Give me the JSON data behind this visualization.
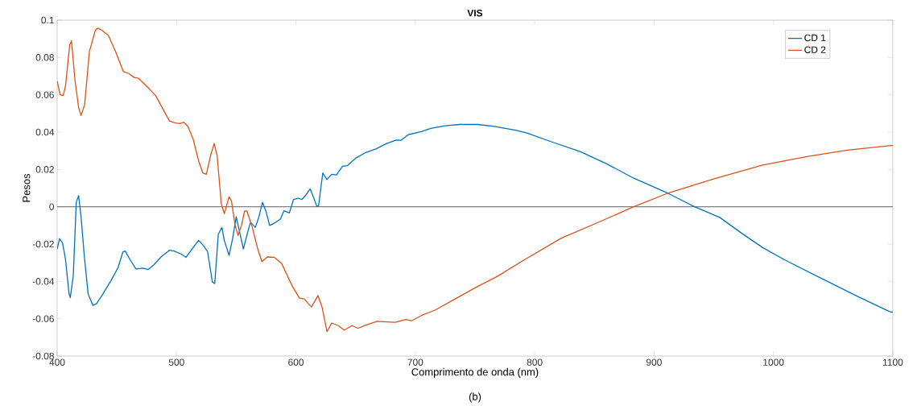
{
  "chart_data": {
    "type": "line",
    "title": "VIS",
    "xlabel": "Comprimento de onda (nm)",
    "ylabel": "Pesos",
    "annotations": [
      "(b)"
    ],
    "xlim": [
      400,
      1100
    ],
    "ylim": [
      -0.08,
      0.1
    ],
    "xticks": [
      400,
      500,
      600,
      700,
      800,
      900,
      1000,
      1100
    ],
    "yticks": [
      -0.08,
      -0.06,
      -0.04,
      -0.02,
      0,
      0.02,
      0.04,
      0.06,
      0.08,
      0.1
    ],
    "grid": false,
    "legend": "top right",
    "marker": "none",
    "line_style": "solid",
    "ref_lines": [
      {
        "axis": "y",
        "value": 0,
        "color": "#808080"
      }
    ],
    "series": [
      {
        "name": "CD 1",
        "color": "#0072bd",
        "x": [
          400,
          402,
          404.5,
          407,
          410,
          411,
          413.5,
          416,
          418,
          420,
          423,
          426,
          430,
          433,
          437.5,
          445,
          451,
          455,
          457,
          461,
          466,
          472,
          476,
          481,
          487,
          494,
          498,
          504,
          508,
          513,
          518.5,
          522,
          526,
          530,
          532,
          535,
          538,
          540,
          544,
          547,
          550,
          553,
          556,
          560,
          562,
          566,
          569,
          572,
          575,
          578,
          582.5,
          587,
          590,
          594.5,
          598,
          602,
          605,
          608,
          612,
          615,
          617.5,
          619,
          622.5,
          626,
          630,
          634,
          639,
          643,
          650,
          658,
          667,
          676,
          684,
          688,
          694,
          705,
          713,
          725,
          737,
          752,
          766,
          784,
          793,
          815,
          838,
          860,
          883,
          912,
          934,
          955,
          973,
          991,
          1009,
          1040,
          1069,
          1097,
          1100
        ],
        "values": [
          -0.0226,
          -0.0171,
          -0.0194,
          -0.0283,
          -0.0469,
          -0.0487,
          -0.0369,
          0.0024,
          0.006,
          -0.0054,
          -0.0283,
          -0.0469,
          -0.0529,
          -0.0519,
          -0.0476,
          -0.0397,
          -0.0326,
          -0.0243,
          -0.0237,
          -0.0283,
          -0.0333,
          -0.0329,
          -0.0337,
          -0.0311,
          -0.0269,
          -0.0233,
          -0.0237,
          -0.0254,
          -0.0271,
          -0.0226,
          -0.018,
          -0.0204,
          -0.024,
          -0.0404,
          -0.0411,
          -0.0147,
          -0.0111,
          -0.018,
          -0.0261,
          -0.0169,
          -0.0054,
          -0.014,
          -0.0226,
          -0.0126,
          -0.0083,
          -0.0111,
          -0.0054,
          0.0024,
          -0.0026,
          -0.01,
          -0.0086,
          -0.0066,
          -0.0021,
          -0.0033,
          0.0039,
          0.0046,
          0.0039,
          0.006,
          0.0096,
          0.0046,
          0.0003,
          0.0006,
          0.0181,
          0.0146,
          0.0174,
          0.0171,
          0.0217,
          0.022,
          0.026,
          0.0289,
          0.031,
          0.0339,
          0.0357,
          0.0356,
          0.0386,
          0.0403,
          0.042,
          0.0434,
          0.0441,
          0.0441,
          0.0431,
          0.041,
          0.0396,
          0.0346,
          0.0296,
          0.0231,
          0.0153,
          0.0071,
          0,
          -0.0057,
          -0.014,
          -0.0219,
          -0.0283,
          -0.0383,
          -0.0476,
          -0.0561,
          -0.0565
        ]
      },
      {
        "name": "CD 2",
        "color": "#d95319",
        "x": [
          400,
          402.5,
          405,
          407,
          410.5,
          412,
          415,
          418,
          420,
          423,
          427,
          432,
          434,
          437.5,
          443,
          449,
          455.5,
          460,
          464.5,
          468,
          474.5,
          482.5,
          488,
          494,
          499,
          503,
          506,
          509.5,
          514,
          518.5,
          522,
          525,
          528.5,
          531.5,
          534,
          537.5,
          540,
          544,
          546,
          549,
          551.5,
          554.5,
          557,
          559,
          563.5,
          568,
          571.5,
          576,
          582,
          588,
          597,
          603,
          607,
          613,
          618.5,
          622,
          626,
          630,
          635.5,
          640.5,
          647,
          652,
          659,
          668,
          683,
          692,
          697,
          705,
          716.5,
          734.5,
          752.5,
          769,
          788,
          822,
          856,
          883,
          912,
          950,
          991,
          1029,
          1062,
          1097,
          1100
        ],
        "values": [
          0.0674,
          0.06,
          0.0596,
          0.0646,
          0.0867,
          0.0889,
          0.0674,
          0.0531,
          0.0489,
          0.0546,
          0.0831,
          0.0946,
          0.0957,
          0.0946,
          0.0917,
          0.0831,
          0.0724,
          0.0714,
          0.0693,
          0.0689,
          0.0649,
          0.0596,
          0.0531,
          0.046,
          0.0449,
          0.0446,
          0.0453,
          0.0431,
          0.036,
          0.0246,
          0.0181,
          0.0174,
          0.0274,
          0.0339,
          0.0274,
          0.0017,
          -0.0037,
          0.0053,
          0.0031,
          -0.0097,
          -0.0154,
          -0.0097,
          -0.0023,
          -0.0023,
          -0.0111,
          -0.0226,
          -0.0294,
          -0.0269,
          -0.0271,
          -0.0304,
          -0.0426,
          -0.049,
          -0.0494,
          -0.0537,
          -0.0476,
          -0.054,
          -0.0669,
          -0.0623,
          -0.0637,
          -0.0661,
          -0.0637,
          -0.0651,
          -0.0633,
          -0.0614,
          -0.0619,
          -0.0604,
          -0.0611,
          -0.0583,
          -0.0554,
          -0.049,
          -0.0426,
          -0.0372,
          -0.0297,
          -0.0169,
          -0.0076,
          0,
          0.0074,
          0.0149,
          0.0224,
          0.027,
          0.0303,
          0.0327,
          0.0328
        ]
      }
    ]
  }
}
